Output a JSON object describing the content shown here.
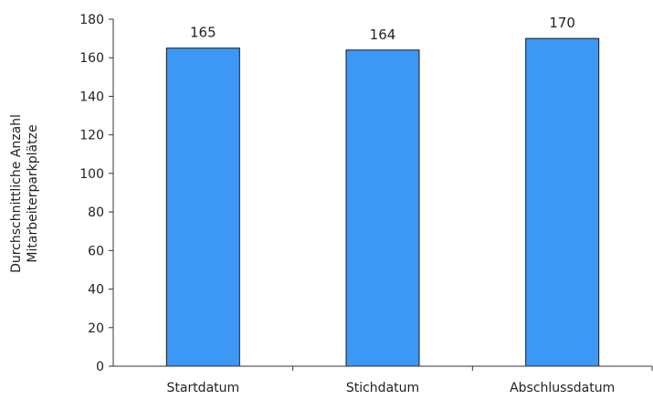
{
  "chart_data": {
    "type": "bar",
    "title": "",
    "xlabel": "",
    "ylabel_lines": [
      "Durchschnittliche Anzahl",
      "Mitarbeiterparkplätze"
    ],
    "categories": [
      "Startdatum",
      "Stichdatum",
      "Abschlussdatum"
    ],
    "values": [
      165,
      164,
      170
    ],
    "data_labels": [
      "165",
      "164",
      "170"
    ],
    "ylim": [
      0,
      180
    ],
    "yticks": [
      0,
      20,
      40,
      60,
      80,
      100,
      120,
      140,
      160,
      180
    ],
    "grid": false,
    "legend": "none",
    "bar_color": "#3d97f5",
    "bar_edge_color": "#1a1a1a"
  }
}
